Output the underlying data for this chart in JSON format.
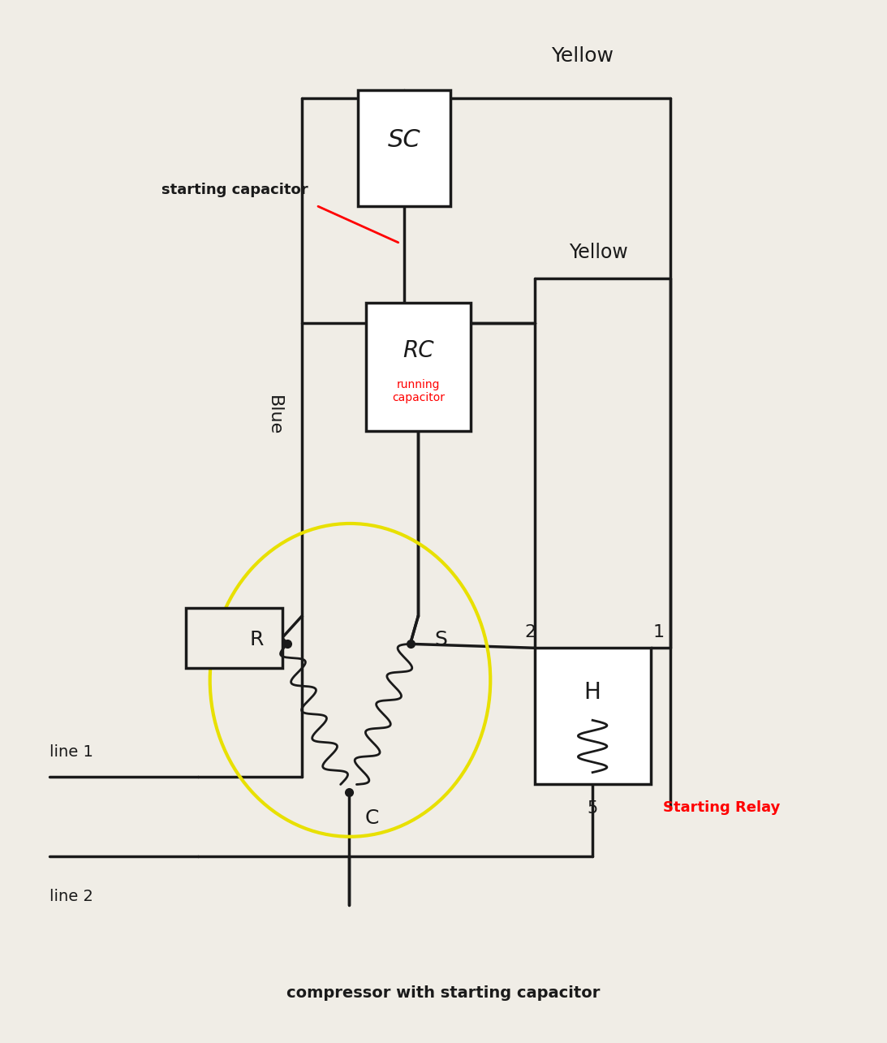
{
  "bg_color": "#f0ede6",
  "title": "compressor with starting capacitor",
  "wire_color": "#1a1a1a",
  "wire_lw": 2.5,
  "yellow_label1": "Yellow",
  "yellow_label2": "Yellow",
  "blue_label": "Blue",
  "line1_label": "line 1",
  "line2_label": "line 2",
  "sc_label": "SC",
  "rc_label": "RC",
  "rc_sub_label": "running\ncapacitor",
  "sc_arrow_label": "starting capacitor",
  "r_label": "R",
  "s_label": "S",
  "c_label": "C",
  "relay_label": "Starting Relay",
  "num1": "1",
  "num2": "2",
  "num5": "5",
  "yellow_circle": "#e8e000"
}
